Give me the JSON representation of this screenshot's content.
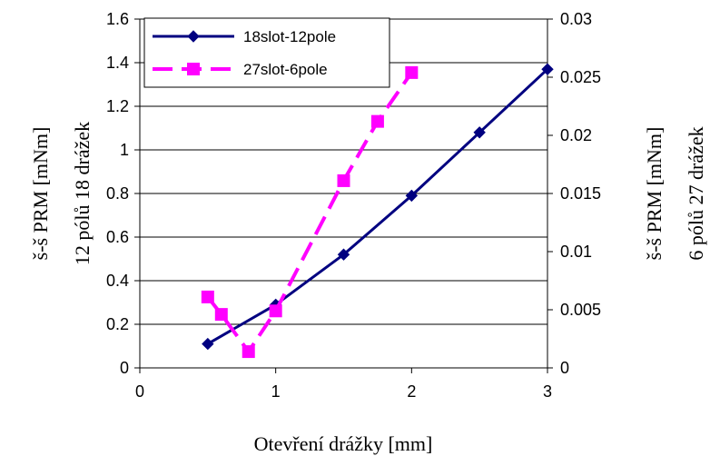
{
  "chart_data": {
    "type": "line",
    "x_axis": {
      "label": "Otevření drážky [mm]",
      "range": [
        0,
        3
      ],
      "ticks": [
        0,
        1,
        2,
        3
      ],
      "tick_labels": [
        "0",
        "1",
        "2",
        "3"
      ]
    },
    "y_axis_left": {
      "label_lines": [
        "š-š PRM [mNm]",
        "12 pólů 18 drážek"
      ],
      "range": [
        0,
        1.6
      ],
      "ticks": [
        0,
        0.2,
        0.4,
        0.6,
        0.8,
        1.0,
        1.2,
        1.4,
        1.6
      ],
      "tick_labels": [
        "0",
        "0.2",
        "0.4",
        "0.6",
        "0.8",
        "1",
        "1.2",
        "1.4",
        "1.6"
      ]
    },
    "y_axis_right": {
      "label_lines": [
        "š-š PRM [mNm]",
        "6 pólů 27 drážek"
      ],
      "range": [
        0,
        0.03
      ],
      "ticks": [
        0,
        0.005,
        0.01,
        0.015,
        0.02,
        0.025,
        0.03
      ],
      "tick_labels": [
        "0",
        "0.005",
        "0.01",
        "0.015",
        "0.02",
        "0.025",
        "0.03"
      ]
    },
    "grid": "horizontal",
    "legend_position": "top-left",
    "series": [
      {
        "name": "18slot-12pole",
        "axis": "left",
        "color": "#000080",
        "marker": "diamond",
        "line_style": "solid",
        "points": [
          [
            0.5,
            0.11
          ],
          [
            1.0,
            0.29
          ],
          [
            1.5,
            0.52
          ],
          [
            2.0,
            0.79
          ],
          [
            2.5,
            1.08
          ],
          [
            3.0,
            1.37
          ]
        ]
      },
      {
        "name": "27slot-6pole",
        "axis": "right",
        "color": "#FF00FF",
        "marker": "square",
        "line_style": "dashed",
        "points": [
          [
            0.5,
            0.0061
          ],
          [
            0.6,
            0.0046
          ],
          [
            0.8,
            0.0014
          ],
          [
            1.0,
            0.0049
          ],
          [
            1.5,
            0.0161
          ],
          [
            1.75,
            0.0212
          ],
          [
            2.0,
            0.0254
          ]
        ]
      }
    ]
  }
}
